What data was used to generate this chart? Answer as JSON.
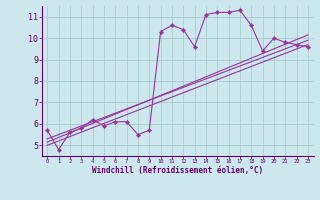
{
  "bg_color": "#cce8ee",
  "line_color": "#993399",
  "grid_color": "#aacccc",
  "axis_color": "#660066",
  "xlabel": "Windchill (Refroidissement éolien,°C)",
  "xlim": [
    -0.5,
    23.5
  ],
  "ylim": [
    4.5,
    11.5
  ],
  "yticks": [
    5,
    6,
    7,
    8,
    9,
    10,
    11
  ],
  "xticks": [
    0,
    1,
    2,
    3,
    4,
    5,
    6,
    7,
    8,
    9,
    10,
    11,
    12,
    13,
    14,
    15,
    16,
    17,
    18,
    19,
    20,
    21,
    22,
    23
  ],
  "series1": {
    "x": [
      0,
      1,
      2,
      3,
      4,
      5,
      6,
      7,
      8,
      9,
      10,
      11,
      12,
      13,
      14,
      15,
      16,
      17,
      18,
      19,
      20,
      21,
      22,
      23
    ],
    "y": [
      5.7,
      4.8,
      5.6,
      5.8,
      6.2,
      5.9,
      6.1,
      6.1,
      5.5,
      5.7,
      10.3,
      10.6,
      10.4,
      9.6,
      11.1,
      11.2,
      11.2,
      11.3,
      10.6,
      9.4,
      10.0,
      9.8,
      9.7,
      9.6
    ]
  },
  "series2": {
    "x": [
      0,
      23
    ],
    "y": [
      5.0,
      9.7
    ]
  },
  "series3": {
    "x": [
      0,
      23
    ],
    "y": [
      5.3,
      9.9
    ]
  },
  "series4": {
    "x": [
      0,
      23
    ],
    "y": [
      5.15,
      10.15
    ]
  }
}
